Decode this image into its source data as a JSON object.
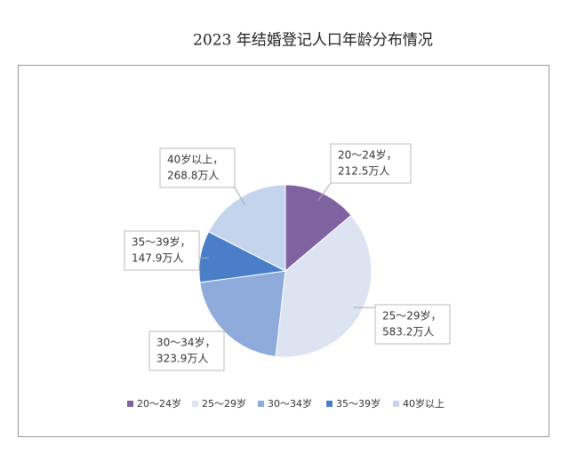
{
  "chart_data": {
    "type": "pie",
    "title": "2023 年结婚登记人口年龄分布情况",
    "categories": [
      "20～24岁",
      "25～29岁",
      "30～34岁",
      "35～39岁",
      "40岁以上"
    ],
    "callout_labels": [
      "20～24岁，",
      "25～29岁，",
      "30～34岁，",
      "35～39岁，",
      "40岁以上，"
    ],
    "values": [
      212.5,
      583.2,
      323.9,
      147.9,
      268.8
    ],
    "value_labels": [
      "212.5万人",
      "583.2万人",
      "323.9万人",
      "147.9万人",
      "268.8万人"
    ],
    "colors": [
      "#7f63a1",
      "#dde4f1",
      "#8eabdc",
      "#4a7ec8",
      "#c4d4ed"
    ],
    "legend": "bottom"
  }
}
